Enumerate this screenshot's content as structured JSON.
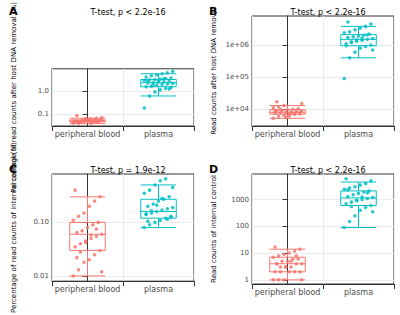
{
  "chart_data": [
    {
      "type": "boxplot",
      "panel_label": "A",
      "title": "T-test, p < 2.2e-16",
      "y_label": "Percentage of read counts after host DNA removal (%)",
      "categories": [
        "peripheral blood",
        "plasma"
      ],
      "colors": [
        "#F8766D",
        "#00BFC4"
      ],
      "values": [
        [
          0.042,
          0.045,
          0.048,
          0.05,
          0.051,
          0.053,
          0.047,
          0.044,
          0.055,
          0.06,
          0.065,
          0.07,
          0.085,
          0.052,
          0.049,
          0.046,
          0.043,
          0.041,
          0.04,
          0.057,
          0.058,
          0.05,
          0.054,
          0.048,
          0.046,
          0.062,
          0.039,
          0.05,
          0.053,
          0.047
        ],
        [
          0.18,
          0.6,
          0.9,
          1.1,
          1.3,
          1.4,
          1.5,
          1.6,
          1.8,
          1.9,
          2.0,
          2.1,
          2.2,
          2.3,
          2.4,
          2.5,
          2.6,
          2.8,
          3.0,
          3.1,
          3.2,
          3.4,
          3.6,
          4.0,
          4.5,
          5.0,
          5.5,
          6.0,
          7.0,
          2.7,
          1.7,
          2.9,
          3.3,
          1.2
        ]
      ],
      "boxes": [
        [
          0.039,
          0.046,
          0.05,
          0.055,
          0.065
        ],
        [
          0.6,
          1.5,
          2.25,
          3.1,
          5.5
        ]
      ],
      "log": "y",
      "grid": true,
      "ylim": [
        0.03,
        9
      ],
      "yticks": [
        0.1,
        {
          "value": 1,
          "label": "1.0"
        }
      ]
    },
    {
      "type": "boxplot",
      "panel_label": "B",
      "title": "T-test, p < 2.2e-16",
      "y_label": "Read counts after host DNA removal",
      "categories": [
        "peripheral blood",
        "plasma"
      ],
      "colors": [
        "#F8766D",
        "#00BFC4"
      ],
      "values": [
        [
          5200,
          6000,
          6500,
          6800,
          7000,
          7200,
          7500,
          7800,
          8000,
          8200,
          8500,
          8800,
          9000,
          9300,
          9600,
          10000,
          10500,
          11000,
          12000,
          13000,
          6200,
          7300,
          8100,
          8900,
          9800,
          5600,
          7700,
          8400,
          15000,
          17000
        ],
        [
          90000,
          400000,
          600000,
          800000,
          900000,
          1000000,
          1100000,
          1200000,
          1300000,
          1400000,
          1500000,
          1600000,
          1700000,
          1800000,
          1900000,
          2000000,
          2200000,
          2400000,
          2600000,
          3000000,
          3400000,
          3800000,
          4500000,
          950000,
          1250000,
          1450000,
          1650000,
          2100000,
          700000,
          5200000
        ]
      ],
      "boxes": [
        [
          5200,
          7000,
          8000,
          9600,
          13000
        ],
        [
          400000,
          950000,
          1500000,
          2100000,
          3800000
        ]
      ],
      "log": "y",
      "grid": true,
      "ylim": [
        3000,
        8000000
      ],
      "yticks": [
        {
          "value": 10000,
          "label": "1e+04"
        },
        {
          "value": 100000,
          "label": "1e+05"
        },
        {
          "value": 1000000,
          "label": "1e+06"
        }
      ]
    },
    {
      "type": "boxplot",
      "panel_label": "C",
      "title": "T-test, p = 1.9e-12",
      "y_label": "Percentage of read counts of internal control (%)",
      "categories": [
        "peripheral blood",
        "plasma"
      ],
      "colors": [
        "#F8766D",
        "#00BFC4"
      ],
      "values": [
        [
          0.01,
          0.013,
          0.018,
          0.02,
          0.025,
          0.03,
          0.035,
          0.04,
          0.045,
          0.05,
          0.055,
          0.06,
          0.065,
          0.07,
          0.08,
          0.09,
          0.1,
          0.11,
          0.13,
          0.15,
          0.2,
          0.25,
          0.3,
          0.4,
          0.028,
          0.042,
          0.058,
          0.075,
          0.012,
          0.022
        ],
        [
          0.08,
          0.09,
          0.1,
          0.11,
          0.12,
          0.13,
          0.14,
          0.15,
          0.16,
          0.17,
          0.18,
          0.19,
          0.2,
          0.22,
          0.25,
          0.27,
          0.3,
          0.35,
          0.4,
          0.5,
          0.6,
          0.65,
          0.125,
          0.145,
          0.165,
          0.21,
          0.28,
          0.115,
          0.45,
          0.105
        ]
      ],
      "boxes": [
        [
          0.01,
          0.03,
          0.06,
          0.1,
          0.3
        ],
        [
          0.08,
          0.12,
          0.16,
          0.27,
          0.5
        ]
      ],
      "log": "y",
      "grid": true,
      "ylim": [
        0.008,
        0.8
      ],
      "yticks": [
        0.01,
        {
          "value": 0.1,
          "label": "0.10"
        }
      ]
    },
    {
      "type": "boxplot",
      "panel_label": "D",
      "title": "T-test, p < 2.2e-16",
      "y_label": "Read counts of internal control",
      "categories": [
        "peripheral blood",
        "plasma"
      ],
      "colors": [
        "#F8766D",
        "#00BFC4"
      ],
      "values": [
        [
          1,
          1,
          1,
          2,
          2,
          2,
          2,
          3,
          3,
          3,
          4,
          4,
          4,
          5,
          5,
          6,
          6,
          7,
          8,
          9,
          10,
          12,
          14,
          17,
          2,
          3,
          5,
          8,
          1,
          4
        ],
        [
          90,
          150,
          250,
          400,
          500,
          600,
          700,
          800,
          900,
          1000,
          1100,
          1200,
          1300,
          1500,
          1700,
          1900,
          2100,
          2400,
          2700,
          3000,
          3500,
          4000,
          5000,
          6000,
          550,
          950,
          1250,
          1800,
          350,
          2300
        ]
      ],
      "boxes": [
        [
          1,
          2,
          4,
          7,
          14
        ],
        [
          90,
          600,
          1150,
          2100,
          4500
        ]
      ],
      "log": "y",
      "grid": true,
      "ylim": [
        0.7,
        9000
      ],
      "yticks": [
        1,
        10,
        100,
        1000
      ]
    }
  ]
}
